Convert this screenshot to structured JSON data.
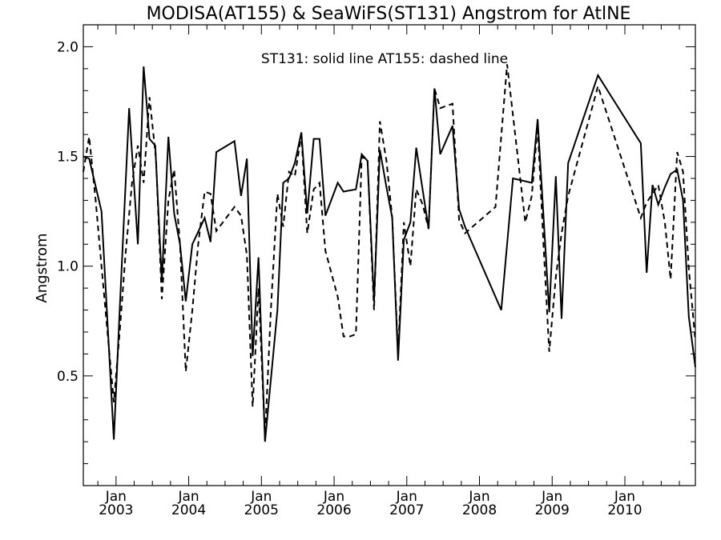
{
  "chart_data": {
    "type": "line",
    "title": "MODISA(AT155) & SeaWiFS(ST131)  Angstrom for AtlNE",
    "ylabel": "Angstrom",
    "xlabel": "",
    "annotation": "ST131: solid line   AT155: dashed line",
    "xlim": [
      2002.55,
      2010.97
    ],
    "ylim": [
      0.0,
      2.1
    ],
    "yticks": [
      0.5,
      1.0,
      1.5,
      2.0
    ],
    "ytick_labels": [
      "0.5",
      "1.0",
      "1.5",
      "2.0"
    ],
    "xticks": [
      {
        "x": 2003.0,
        "month": "Jan",
        "year": "2003"
      },
      {
        "x": 2004.0,
        "month": "Jan",
        "year": "2004"
      },
      {
        "x": 2005.0,
        "month": "Jan",
        "year": "2005"
      },
      {
        "x": 2006.0,
        "month": "Jan",
        "year": "2006"
      },
      {
        "x": 2007.0,
        "month": "Jan",
        "year": "2007"
      },
      {
        "x": 2008.0,
        "month": "Jan",
        "year": "2008"
      },
      {
        "x": 2009.0,
        "month": "Jan",
        "year": "2009"
      },
      {
        "x": 2010.0,
        "month": "Jan",
        "year": "2010"
      }
    ],
    "grid": false,
    "series": [
      {
        "name": "ST131",
        "style": "solid",
        "color": "#000000",
        "points": [
          [
            2002.55,
            1.5
          ],
          [
            2002.63,
            1.49
          ],
          [
            2002.8,
            1.25
          ],
          [
            2002.97,
            0.21
          ],
          [
            2003.05,
            0.8
          ],
          [
            2003.18,
            1.72
          ],
          [
            2003.3,
            1.1
          ],
          [
            2003.38,
            1.91
          ],
          [
            2003.46,
            1.58
          ],
          [
            2003.54,
            1.55
          ],
          [
            2003.63,
            0.93
          ],
          [
            2003.72,
            1.59
          ],
          [
            2003.8,
            1.24
          ],
          [
            2003.88,
            1.1
          ],
          [
            2003.96,
            0.84
          ],
          [
            2004.05,
            1.1
          ],
          [
            2004.22,
            1.22
          ],
          [
            2004.3,
            1.11
          ],
          [
            2004.38,
            1.52
          ],
          [
            2004.63,
            1.57
          ],
          [
            2004.72,
            1.32
          ],
          [
            2004.8,
            1.49
          ],
          [
            2004.88,
            0.59
          ],
          [
            2004.96,
            1.04
          ],
          [
            2005.05,
            0.2
          ],
          [
            2005.22,
            0.8
          ],
          [
            2005.3,
            1.38
          ],
          [
            2005.38,
            1.4
          ],
          [
            2005.46,
            1.47
          ],
          [
            2005.55,
            1.61
          ],
          [
            2005.63,
            1.24
          ],
          [
            2005.72,
            1.58
          ],
          [
            2005.8,
            1.58
          ],
          [
            2005.88,
            1.23
          ],
          [
            2006.05,
            1.38
          ],
          [
            2006.13,
            1.34
          ],
          [
            2006.3,
            1.35
          ],
          [
            2006.38,
            1.51
          ],
          [
            2006.46,
            1.48
          ],
          [
            2006.55,
            0.84
          ],
          [
            2006.63,
            1.53
          ],
          [
            2006.72,
            1.36
          ],
          [
            2006.8,
            1.22
          ],
          [
            2006.88,
            0.57
          ],
          [
            2006.96,
            1.12
          ],
          [
            2007.05,
            1.2
          ],
          [
            2007.13,
            1.54
          ],
          [
            2007.3,
            1.17
          ],
          [
            2007.38,
            1.81
          ],
          [
            2007.46,
            1.51
          ],
          [
            2007.63,
            1.64
          ],
          [
            2007.72,
            1.26
          ],
          [
            2007.8,
            1.18
          ],
          [
            2008.3,
            0.8
          ],
          [
            2008.46,
            1.4
          ],
          [
            2008.72,
            1.38
          ],
          [
            2008.8,
            1.67
          ],
          [
            2008.88,
            1.23
          ],
          [
            2008.96,
            0.79
          ],
          [
            2009.05,
            1.41
          ],
          [
            2009.13,
            0.76
          ],
          [
            2009.22,
            1.47
          ],
          [
            2009.63,
            1.87
          ],
          [
            2010.22,
            1.56
          ],
          [
            2010.3,
            0.97
          ],
          [
            2010.38,
            1.37
          ],
          [
            2010.46,
            1.28
          ],
          [
            2010.55,
            1.36
          ],
          [
            2010.63,
            1.42
          ],
          [
            2010.72,
            1.44
          ],
          [
            2010.8,
            1.3
          ],
          [
            2010.88,
            0.77
          ],
          [
            2010.97,
            0.54
          ]
        ]
      },
      {
        "name": "AT155",
        "style": "dashed",
        "color": "#000000",
        "points": [
          [
            2002.55,
            1.43
          ],
          [
            2002.63,
            1.59
          ],
          [
            2002.72,
            1.3
          ],
          [
            2002.8,
            1.0
          ],
          [
            2002.97,
            0.38
          ],
          [
            2003.05,
            0.7
          ],
          [
            2003.13,
            1.05
          ],
          [
            2003.22,
            1.38
          ],
          [
            2003.3,
            1.55
          ],
          [
            2003.38,
            1.38
          ],
          [
            2003.46,
            1.77
          ],
          [
            2003.55,
            1.49
          ],
          [
            2003.63,
            0.85
          ],
          [
            2003.72,
            1.3
          ],
          [
            2003.8,
            1.44
          ],
          [
            2003.88,
            1.1
          ],
          [
            2003.96,
            0.52
          ],
          [
            2004.05,
            0.8
          ],
          [
            2004.13,
            1.1
          ],
          [
            2004.22,
            1.34
          ],
          [
            2004.3,
            1.33
          ],
          [
            2004.38,
            1.16
          ],
          [
            2004.63,
            1.27
          ],
          [
            2004.72,
            1.23
          ],
          [
            2004.8,
            1.05
          ],
          [
            2004.88,
            0.36
          ],
          [
            2004.96,
            0.9
          ],
          [
            2005.05,
            0.22
          ],
          [
            2005.13,
            0.8
          ],
          [
            2005.22,
            1.33
          ],
          [
            2005.3,
            1.18
          ],
          [
            2005.38,
            1.43
          ],
          [
            2005.46,
            1.41
          ],
          [
            2005.55,
            1.6
          ],
          [
            2005.63,
            1.15
          ],
          [
            2005.72,
            1.35
          ],
          [
            2005.8,
            1.38
          ],
          [
            2005.88,
            1.07
          ],
          [
            2006.05,
            0.86
          ],
          [
            2006.13,
            0.68
          ],
          [
            2006.22,
            0.68
          ],
          [
            2006.3,
            0.69
          ],
          [
            2006.38,
            1.5
          ],
          [
            2006.46,
            1.48
          ],
          [
            2006.55,
            0.8
          ],
          [
            2006.63,
            1.66
          ],
          [
            2006.72,
            1.48
          ],
          [
            2006.8,
            1.22
          ],
          [
            2006.88,
            0.6
          ],
          [
            2006.96,
            1.2
          ],
          [
            2007.05,
            1.0
          ],
          [
            2007.13,
            1.35
          ],
          [
            2007.22,
            1.28
          ],
          [
            2007.3,
            1.17
          ],
          [
            2007.38,
            1.81
          ],
          [
            2007.46,
            1.72
          ],
          [
            2007.63,
            1.74
          ],
          [
            2007.72,
            1.21
          ],
          [
            2007.8,
            1.15
          ],
          [
            2008.22,
            1.27
          ],
          [
            2008.38,
            1.92
          ],
          [
            2008.63,
            1.2
          ],
          [
            2008.72,
            1.32
          ],
          [
            2008.8,
            1.64
          ],
          [
            2008.88,
            1.1
          ],
          [
            2008.96,
            0.61
          ],
          [
            2009.05,
            0.95
          ],
          [
            2009.13,
            1.15
          ],
          [
            2009.22,
            1.32
          ],
          [
            2009.63,
            1.82
          ],
          [
            2010.22,
            1.22
          ],
          [
            2010.3,
            1.29
          ],
          [
            2010.38,
            1.33
          ],
          [
            2010.46,
            1.37
          ],
          [
            2010.55,
            1.2
          ],
          [
            2010.63,
            0.94
          ],
          [
            2010.72,
            1.52
          ],
          [
            2010.8,
            1.43
          ],
          [
            2010.88,
            0.99
          ],
          [
            2010.97,
            0.66
          ]
        ]
      }
    ]
  }
}
